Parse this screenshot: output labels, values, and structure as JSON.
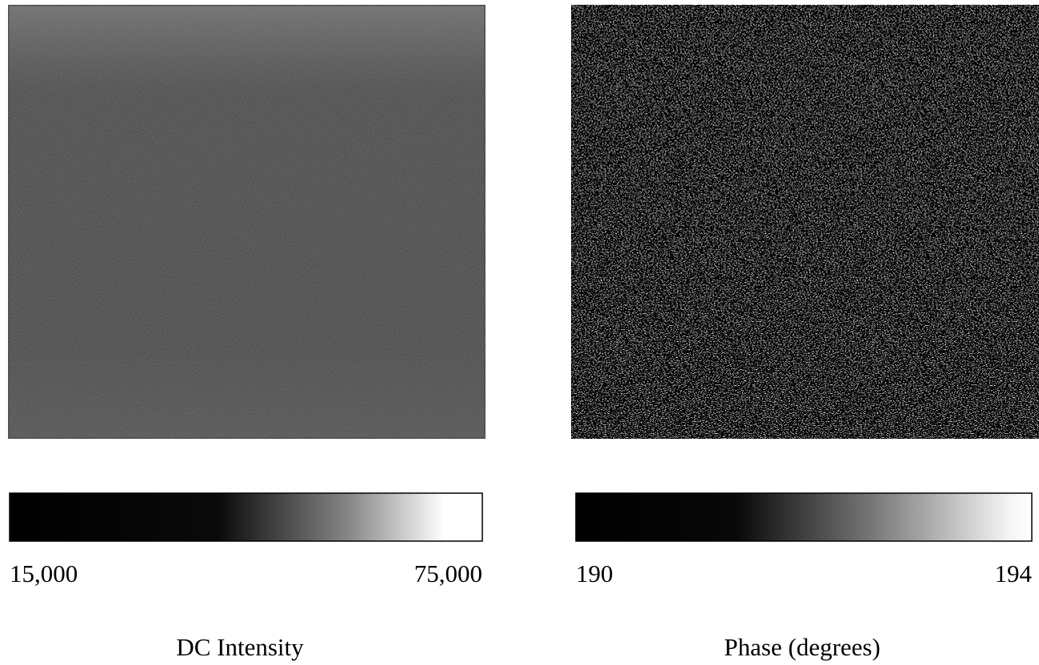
{
  "chart_data": [
    {
      "type": "heatmap",
      "title": "DC Intensity",
      "cmap": "gray",
      "clim": [
        15000,
        75000
      ],
      "cticks": [
        {
          "value": 15000,
          "label": "15,000"
        },
        {
          "value": 75000,
          "label": "75,000"
        }
      ]
    },
    {
      "type": "heatmap",
      "title": "Phase (degrees)",
      "cmap": "gray",
      "clim": [
        190,
        194
      ],
      "cticks": [
        190,
        194
      ]
    }
  ]
}
